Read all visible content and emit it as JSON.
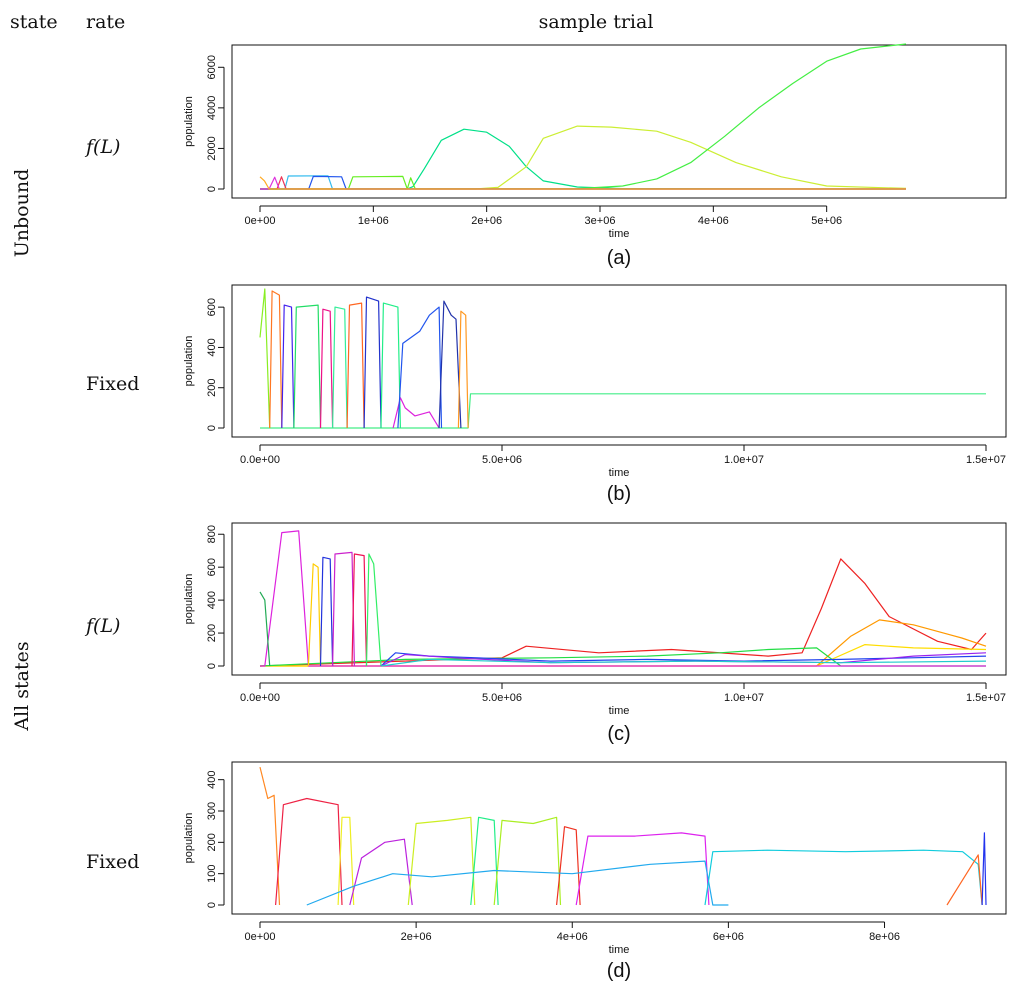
{
  "header": {
    "state": "state",
    "rate": "rate",
    "title": "sample trial"
  },
  "groups": [
    {
      "label": "Unbound"
    },
    {
      "label": "All states"
    }
  ],
  "rates": [
    "f(L)",
    "Fixed",
    "f(L)",
    "Fixed"
  ],
  "chart_data": [
    {
      "type": "line",
      "panel": "(a)",
      "xlabel": "time",
      "ylabel": "population",
      "xlim": [
        0,
        5700000
      ],
      "ylim": [
        0,
        7000
      ],
      "xticks": [
        0,
        1000000,
        2000000,
        3000000,
        4000000,
        5000000
      ],
      "xtick_labels": [
        "0e+00",
        "1e+06",
        "2e+06",
        "3e+06",
        "4e+06",
        "5e+06"
      ],
      "yticks": [
        0,
        2000,
        4000,
        6000
      ],
      "ytick_labels": [
        "0",
        "2000",
        "4000",
        "6000"
      ],
      "series": [
        {
          "color": "#00e088",
          "x": [
            0,
            1300000,
            1350000,
            1450000,
            1600000,
            1800000,
            2000000,
            2200000,
            2350000,
            2500000,
            2800000,
            3200000,
            5700000
          ],
          "y": [
            0,
            0,
            120,
            1000,
            2400,
            2950,
            2800,
            2100,
            1100,
            400,
            100,
            20,
            0
          ]
        },
        {
          "color": "#ccee33",
          "x": [
            0,
            1900000,
            2100000,
            2350000,
            2500000,
            2800000,
            3100000,
            3500000,
            3800000,
            4200000,
            4600000,
            5000000,
            5700000
          ],
          "y": [
            0,
            0,
            80,
            1100,
            2500,
            3100,
            3050,
            2850,
            2300,
            1300,
            600,
            150,
            30
          ]
        },
        {
          "color": "#44ee44",
          "x": [
            0,
            2800000,
            3200000,
            3500000,
            3800000,
            4100000,
            4400000,
            4700000,
            5000000,
            5300000,
            5700000
          ],
          "y": [
            0,
            20,
            150,
            500,
            1300,
            2600,
            4000,
            5200,
            6300,
            6900,
            7150
          ]
        },
        {
          "color": "#33bbee",
          "x": [
            0,
            220000,
            250000,
            600000,
            640000,
            5700000
          ],
          "y": [
            0,
            0,
            640,
            650,
            0,
            0
          ]
        },
        {
          "color": "#2255ee",
          "x": [
            0,
            430000,
            470000,
            720000,
            760000,
            5700000
          ],
          "y": [
            0,
            0,
            620,
            600,
            0,
            0
          ]
        },
        {
          "color": "#66ee22",
          "x": [
            0,
            780000,
            820000,
            1260000,
            1300000,
            1330000,
            1370000,
            5700000
          ],
          "y": [
            0,
            0,
            600,
            620,
            0,
            550,
            0,
            0
          ]
        },
        {
          "color": "#ee3355",
          "x": [
            0,
            150000,
            190000,
            230000,
            5700000
          ],
          "y": [
            0,
            0,
            600,
            0,
            0
          ]
        },
        {
          "color": "#dd33dd",
          "x": [
            0,
            80000,
            130000,
            170000,
            5700000
          ],
          "y": [
            0,
            0,
            580,
            0,
            0
          ]
        },
        {
          "color": "#ffaa22",
          "x": [
            0,
            0,
            40000,
            80000,
            5700000
          ],
          "y": [
            600,
            600,
            400,
            0,
            0
          ]
        }
      ]
    },
    {
      "type": "line",
      "panel": "(b)",
      "xlabel": "time",
      "ylabel": "population",
      "xlim": [
        0,
        15000000
      ],
      "ylim": [
        0,
        700
      ],
      "xticks": [
        0,
        5000000,
        10000000,
        15000000
      ],
      "xtick_labels": [
        "0.0e+00",
        "5.0e+06",
        "1.0e+07",
        "1.5e+07"
      ],
      "yticks": [
        0,
        200,
        400,
        600
      ],
      "ytick_labels": [
        "0",
        "200",
        "400",
        "600"
      ],
      "series": [
        {
          "color": "#44ee88",
          "x": [
            0,
            4300000,
            4350000,
            15000000
          ],
          "y": [
            0,
            0,
            170,
            170
          ]
        },
        {
          "color": "#88ee22",
          "x": [
            0,
            0,
            100000,
            200000
          ],
          "y": [
            450,
            450,
            690,
            0
          ]
        },
        {
          "color": "#ff7722",
          "x": [
            200000,
            250000,
            400000,
            450000
          ],
          "y": [
            0,
            680,
            660,
            0
          ]
        },
        {
          "color": "#4422ee",
          "x": [
            450000,
            500000,
            650000,
            700000
          ],
          "y": [
            0,
            610,
            600,
            0
          ]
        },
        {
          "color": "#22dd66",
          "x": [
            700000,
            750000,
            1200000,
            1250000
          ],
          "y": [
            0,
            600,
            610,
            0
          ]
        },
        {
          "color": "#ee1188",
          "x": [
            1250000,
            1300000,
            1450000,
            1500000
          ],
          "y": [
            0,
            590,
            580,
            0
          ]
        },
        {
          "color": "#33ee99",
          "x": [
            1500000,
            1550000,
            1750000,
            1800000
          ],
          "y": [
            0,
            600,
            590,
            0
          ]
        },
        {
          "color": "#ff6622",
          "x": [
            1800000,
            1850000,
            2100000,
            2150000
          ],
          "y": [
            0,
            610,
            620,
            0
          ]
        },
        {
          "color": "#2233cc",
          "x": [
            2150000,
            2200000,
            2450000,
            2500000
          ],
          "y": [
            0,
            650,
            630,
            0
          ]
        },
        {
          "color": "#22ee88",
          "x": [
            2500000,
            2550000,
            2850000,
            2900000
          ],
          "y": [
            0,
            620,
            600,
            0
          ]
        },
        {
          "color": "#dd22dd",
          "x": [
            2750000,
            2900000,
            3000000,
            3200000,
            3500000,
            3700000
          ],
          "y": [
            0,
            150,
            100,
            60,
            80,
            0
          ]
        },
        {
          "color": "#2255ee",
          "x": [
            2850000,
            2950000,
            3300000,
            3500000,
            3700000,
            3750000
          ],
          "y": [
            0,
            420,
            480,
            560,
            600,
            0
          ]
        },
        {
          "color": "#2233aa",
          "x": [
            3700000,
            3800000,
            3950000,
            4050000,
            4150000
          ],
          "y": [
            0,
            630,
            560,
            540,
            0
          ]
        },
        {
          "color": "#ff9922",
          "x": [
            4100000,
            4150000,
            4250000,
            4300000
          ],
          "y": [
            0,
            580,
            560,
            0
          ]
        }
      ]
    },
    {
      "type": "line",
      "panel": "(c)",
      "xlabel": "time",
      "ylabel": "population",
      "xlim": [
        0,
        15000000
      ],
      "ylim": [
        0,
        850
      ],
      "xticks": [
        0,
        5000000,
        10000000,
        15000000
      ],
      "xtick_labels": [
        "0.0e+00",
        "5.0e+06",
        "1.0e+07",
        "1.5e+07"
      ],
      "yticks": [
        0,
        200,
        400,
        600,
        800
      ],
      "ytick_labels": [
        "0",
        "200",
        "400",
        "600",
        "800"
      ],
      "series": [
        {
          "color": "#ee2222",
          "x": [
            0,
            5000000,
            5500000,
            7000000,
            8500000,
            10500000,
            11200000,
            11600000,
            12000000,
            12500000,
            13000000,
            14000000,
            14700000,
            15000000
          ],
          "y": [
            0,
            50,
            120,
            80,
            100,
            60,
            80,
            350,
            650,
            500,
            300,
            150,
            100,
            200
          ]
        },
        {
          "color": "#ff9900",
          "x": [
            0,
            11500000,
            12200000,
            12800000,
            13500000,
            14500000,
            15000000
          ],
          "y": [
            0,
            0,
            180,
            280,
            250,
            170,
            120
          ]
        },
        {
          "color": "#ffdd00",
          "x": [
            0,
            11500000,
            12500000,
            13500000,
            15000000
          ],
          "y": [
            0,
            0,
            130,
            110,
            100
          ]
        },
        {
          "color": "#22dd44",
          "x": [
            0,
            3000000,
            6000000,
            8000000,
            9500000,
            10500000,
            11500000,
            12000000,
            15000000
          ],
          "y": [
            0,
            40,
            50,
            60,
            80,
            100,
            110,
            0,
            0
          ]
        },
        {
          "color": "#dd22dd",
          "x": [
            0,
            100000,
            450000,
            800000,
            1000000,
            1150000,
            15000000
          ],
          "y": [
            0,
            0,
            810,
            820,
            0,
            0,
            0
          ]
        },
        {
          "color": "#ffcc00",
          "x": [
            1000000,
            1100000,
            1200000,
            1250000
          ],
          "y": [
            0,
            620,
            600,
            0
          ]
        },
        {
          "color": "#2233dd",
          "x": [
            1250000,
            1300000,
            1450000,
            1500000
          ],
          "y": [
            0,
            660,
            650,
            0
          ]
        },
        {
          "color": "#cc22cc",
          "x": [
            1500000,
            1550000,
            1900000,
            1950000
          ],
          "y": [
            0,
            680,
            690,
            0
          ]
        },
        {
          "color": "#ee1155",
          "x": [
            1900000,
            1950000,
            2150000,
            2200000
          ],
          "y": [
            0,
            680,
            670,
            0
          ]
        },
        {
          "color": "#33ee66",
          "x": [
            2200000,
            2250000,
            2350000,
            2500000
          ],
          "y": [
            0,
            680,
            620,
            0
          ]
        },
        {
          "color": "#22aa55",
          "x": [
            0,
            0,
            100000,
            200000
          ],
          "y": [
            450,
            450,
            400,
            0
          ]
        },
        {
          "color": "#2244ee",
          "x": [
            2500000,
            2800000,
            3500000,
            4500000,
            6000000,
            8000000,
            10000000,
            12000000,
            15000000
          ],
          "y": [
            0,
            80,
            60,
            50,
            30,
            40,
            30,
            40,
            60
          ]
        },
        {
          "color": "#9922ee",
          "x": [
            2500000,
            3000000,
            4000000,
            6000000,
            9000000,
            12000000,
            13500000,
            15000000
          ],
          "y": [
            0,
            70,
            50,
            20,
            30,
            20,
            60,
            80
          ]
        },
        {
          "color": "#22cccc",
          "x": [
            2500000,
            3500000,
            6000000,
            9000000,
            12000000,
            15000000
          ],
          "y": [
            0,
            40,
            20,
            30,
            20,
            30
          ]
        }
      ]
    },
    {
      "type": "line",
      "panel": "(d)",
      "xlabel": "time",
      "ylabel": "population",
      "xlim": [
        0,
        9300000
      ],
      "ylim": [
        0,
        450
      ],
      "xticks": [
        0,
        2000000,
        4000000,
        6000000,
        8000000
      ],
      "xtick_labels": [
        "0e+00",
        "2e+06",
        "4e+06",
        "6e+06",
        "8e+06"
      ],
      "yticks": [
        0,
        100,
        200,
        300,
        400
      ],
      "ytick_labels": [
        "0",
        "100",
        "200",
        "300",
        "400"
      ],
      "series": [
        {
          "color": "#ff8822",
          "x": [
            0,
            0,
            100000,
            180000,
            250000
          ],
          "y": [
            440,
            440,
            340,
            350,
            0
          ]
        },
        {
          "color": "#ee2244",
          "x": [
            200000,
            300000,
            600000,
            1000000,
            1050000
          ],
          "y": [
            0,
            320,
            340,
            320,
            0
          ]
        },
        {
          "color": "#eeee22",
          "x": [
            1000000,
            1050000,
            1150000,
            1200000
          ],
          "y": [
            0,
            280,
            280,
            0
          ]
        },
        {
          "color": "#bb22dd",
          "x": [
            1150000,
            1300000,
            1600000,
            1850000,
            1950000
          ],
          "y": [
            0,
            150,
            200,
            210,
            0
          ]
        },
        {
          "color": "#ccee22",
          "x": [
            1900000,
            2000000,
            2400000,
            2700000,
            2750000
          ],
          "y": [
            0,
            260,
            270,
            280,
            0
          ]
        },
        {
          "color": "#22ee88",
          "x": [
            2700000,
            2800000,
            3000000,
            3050000
          ],
          "y": [
            0,
            280,
            270,
            0
          ]
        },
        {
          "color": "#aaee22",
          "x": [
            3000000,
            3100000,
            3500000,
            3800000,
            3850000
          ],
          "y": [
            0,
            270,
            260,
            280,
            0
          ]
        },
        {
          "color": "#ee3322",
          "x": [
            3800000,
            3900000,
            4050000,
            4100000
          ],
          "y": [
            0,
            250,
            240,
            0
          ]
        },
        {
          "color": "#dd22ee",
          "x": [
            4050000,
            4200000,
            4800000,
            5400000,
            5700000,
            5750000
          ],
          "y": [
            0,
            220,
            220,
            230,
            220,
            0
          ]
        },
        {
          "color": "#22aaee",
          "x": [
            600000,
            1200000,
            1700000,
            2200000,
            3000000,
            4000000,
            5000000,
            5700000,
            5800000,
            6000000
          ],
          "y": [
            0,
            60,
            100,
            90,
            110,
            100,
            130,
            140,
            0,
            0
          ]
        },
        {
          "color": "#11ccdd",
          "x": [
            5700000,
            5800000,
            6500000,
            7500000,
            8500000,
            9000000,
            9200000,
            9250000
          ],
          "y": [
            0,
            170,
            175,
            170,
            175,
            170,
            130,
            0
          ]
        },
        {
          "color": "#ff6622",
          "x": [
            8800000,
            9000000,
            9200000,
            9250000
          ],
          "y": [
            0,
            80,
            160,
            0
          ]
        },
        {
          "color": "#2233ee",
          "x": [
            9250000,
            9280000,
            9300000
          ],
          "y": [
            0,
            230,
            0
          ]
        }
      ]
    }
  ]
}
